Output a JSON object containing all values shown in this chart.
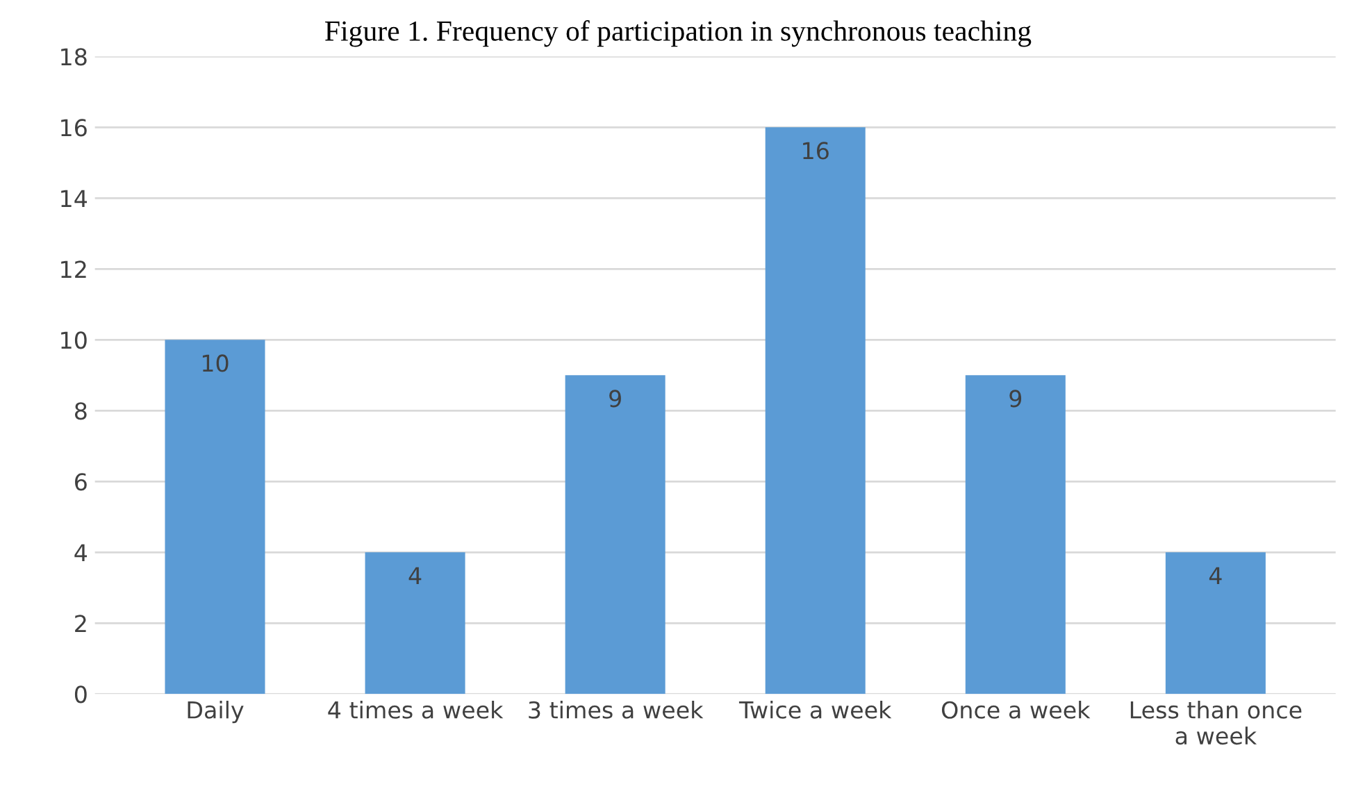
{
  "chart_data": {
    "type": "bar",
    "title": "Figure 1. Frequency of participation in synchronous teaching",
    "categories": [
      "Daily",
      "4 times a week",
      "3 times a week",
      "Twice a week",
      "Once a week",
      "Less than once\na week"
    ],
    "values": [
      10,
      4,
      9,
      16,
      9,
      4
    ],
    "color": "#5b9bd5",
    "ylim": [
      0,
      18
    ],
    "yticks": [
      0,
      2,
      4,
      6,
      8,
      10,
      12,
      14,
      16,
      18
    ],
    "grid": "y",
    "data_labels": true,
    "legend": false
  }
}
